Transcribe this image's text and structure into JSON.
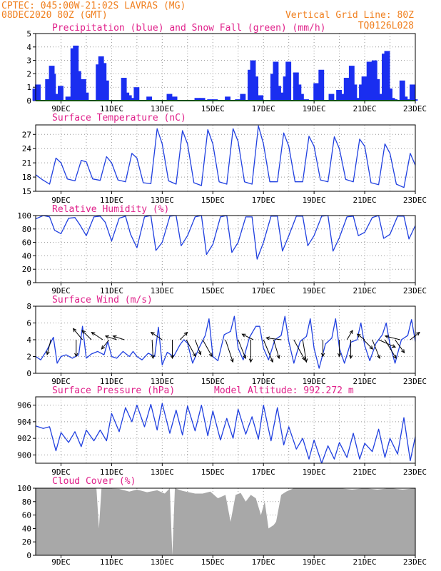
{
  "header": {
    "line1_left": "CPTEC:  045:00W-21:02S  LAVRAS (MG)",
    "line2_left": "08DEC2020 80Z (GMT)",
    "line2_right": "Vertical Grid Line: 80Z",
    "line3_right": "TQ0126L028"
  },
  "colors": {
    "header": "#f08020",
    "title": "#e0208a",
    "line": "#2040e0",
    "precip": "#1a2ef0",
    "snow": "#20a020",
    "cloud": "#a8a8a8",
    "grid": "#999999",
    "arrow": "#000000"
  },
  "x_axis": {
    "range_days": [
      8.0,
      23.0
    ],
    "tick_positions": [
      9,
      11,
      13,
      15,
      17,
      19,
      21,
      23
    ],
    "tick_labels": [
      "9DEC",
      "11DEC",
      "13DEC",
      "15DEC",
      "17DEC",
      "19DEC",
      "21DEC",
      "23DEC"
    ],
    "minor_grid_days": [
      8,
      9,
      10,
      11,
      12,
      13,
      14,
      15,
      16,
      17,
      18,
      19,
      20,
      21,
      22,
      23
    ]
  },
  "chart_data": [
    {
      "type": "bar",
      "panel": "precipitation",
      "title": "Precipitation (blue) and Snow Fall (green) (mm/h)",
      "ylim": [
        0,
        5
      ],
      "yticks": [
        0,
        1,
        2,
        3,
        4,
        5
      ],
      "series": [
        {
          "name": "Precipitation",
          "x": [
            8.0,
            8.1,
            8.5,
            8.6,
            8.65,
            8.7,
            8.8,
            9.0,
            9.3,
            9.5,
            9.6,
            9.7,
            9.8,
            9.9,
            10.0,
            10.5,
            10.6,
            10.7,
            10.8,
            11.5,
            11.6,
            11.7,
            11.8,
            12.0,
            12.5,
            12.6,
            13.3,
            13.5,
            14.4,
            14.6,
            14.9,
            15.1,
            15.6,
            16.0,
            16.2,
            16.5,
            16.6,
            16.7,
            16.9,
            17.4,
            17.5,
            17.6,
            17.8,
            17.9,
            18.0,
            18.3,
            18.4,
            18.5,
            18.7,
            19.1,
            19.3,
            19.7,
            20.0,
            20.1,
            20.3,
            20.5,
            20.6,
            20.8,
            20.9,
            21.0,
            21.2,
            21.4,
            21.5,
            21.6,
            21.8,
            21.9,
            22.0,
            22.1,
            22.2,
            22.5,
            22.6,
            22.7,
            22.9,
            23.0
          ],
          "values": [
            0.9,
            1.2,
            1.6,
            1.3,
            2.6,
            2.0,
            0.5,
            1.1,
            0.3,
            3.9,
            4.1,
            2.2,
            0.8,
            1.6,
            0.6,
            2.7,
            3.3,
            2.8,
            1.5,
            1.7,
            0.6,
            0.4,
            0.2,
            1.0,
            0.3,
            0.0,
            0.5,
            0.3,
            0.2,
            0.2,
            0.1,
            0.1,
            0.3,
            0.1,
            0.5,
            2.3,
            3.0,
            1.8,
            0.4,
            2.0,
            2.9,
            1.1,
            0.6,
            1.8,
            2.9,
            2.1,
            1.2,
            0.5,
            0.1,
            1.3,
            2.3,
            0.5,
            0.8,
            0.5,
            1.7,
            2.6,
            1.2,
            0.2,
            1.2,
            1.8,
            2.9,
            3.0,
            1.6,
            0.5,
            3.5,
            3.7,
            0.9,
            0.2,
            0.1,
            1.5,
            0.3,
            0.1,
            1.2,
            0.1
          ]
        },
        {
          "name": "Snow Fall",
          "x": [
            8.0,
            23.0
          ],
          "values": [
            0.0,
            0.0
          ]
        }
      ]
    },
    {
      "type": "line",
      "panel": "temperature",
      "title": "Surface Temperature (nC)",
      "ylim": [
        15,
        29
      ],
      "yticks": [
        15,
        18,
        21,
        24,
        27
      ],
      "series": [
        {
          "name": "Surface Temperature",
          "x": [
            8.0,
            8.25,
            8.55,
            8.8,
            9.0,
            9.25,
            9.55,
            9.8,
            10.0,
            10.25,
            10.55,
            10.8,
            11.0,
            11.25,
            11.55,
            11.8,
            12.0,
            12.25,
            12.55,
            12.8,
            13.0,
            13.25,
            13.55,
            13.8,
            14.0,
            14.25,
            14.55,
            14.8,
            15.0,
            15.25,
            15.55,
            15.8,
            16.0,
            16.25,
            16.55,
            16.8,
            17.0,
            17.25,
            17.55,
            17.8,
            18.0,
            18.25,
            18.55,
            18.8,
            19.0,
            19.25,
            19.55,
            19.8,
            20.0,
            20.25,
            20.55,
            20.8,
            21.0,
            21.25,
            21.55,
            21.8,
            22.0,
            22.25,
            22.55,
            22.8,
            23.0
          ],
          "values": [
            18.5,
            17.5,
            16.5,
            22.0,
            21.0,
            17.6,
            17.2,
            21.5,
            21.2,
            17.6,
            17.3,
            22.3,
            21.0,
            17.4,
            17.0,
            23.0,
            22.0,
            16.8,
            16.6,
            28.2,
            25.0,
            17.2,
            16.5,
            27.8,
            25.0,
            16.8,
            16.2,
            28.0,
            25.0,
            17.0,
            16.5,
            28.2,
            25.5,
            17.0,
            16.5,
            28.8,
            25.0,
            17.0,
            17.0,
            27.3,
            24.5,
            17.0,
            17.0,
            26.6,
            24.5,
            17.4,
            17.0,
            26.5,
            24.0,
            17.5,
            17.0,
            26.0,
            24.5,
            16.8,
            16.4,
            25.0,
            23.0,
            16.5,
            15.8,
            23.0,
            20.5
          ]
        }
      ]
    },
    {
      "type": "line",
      "panel": "humidity",
      "title": "Relative Humidity (%)",
      "ylim": [
        0,
        100
      ],
      "yticks": [
        0,
        20,
        40,
        60,
        80,
        100
      ],
      "series": [
        {
          "name": "Relative Humidity",
          "x": [
            8.0,
            8.3,
            8.55,
            8.75,
            9.0,
            9.3,
            9.55,
            9.75,
            10.0,
            10.3,
            10.55,
            10.75,
            11.0,
            11.3,
            11.55,
            11.75,
            12.0,
            12.3,
            12.55,
            12.75,
            13.0,
            13.3,
            13.55,
            13.75,
            14.0,
            14.3,
            14.55,
            14.75,
            15.0,
            15.3,
            15.55,
            15.75,
            16.0,
            16.3,
            16.55,
            16.75,
            17.0,
            17.3,
            17.55,
            17.75,
            18.0,
            18.3,
            18.55,
            18.75,
            19.0,
            19.3,
            19.55,
            19.75,
            20.0,
            20.3,
            20.55,
            20.75,
            21.0,
            21.3,
            21.55,
            21.75,
            22.0,
            22.3,
            22.55,
            22.75,
            23.0
          ],
          "values": [
            95,
            100,
            98,
            78,
            73,
            96,
            97,
            86,
            70,
            98,
            99,
            90,
            62,
            96,
            99,
            72,
            52,
            98,
            100,
            48,
            60,
            99,
            100,
            55,
            70,
            98,
            100,
            42,
            57,
            98,
            100,
            45,
            60,
            98,
            98,
            35,
            60,
            99,
            99,
            47,
            70,
            99,
            99,
            55,
            70,
            99,
            100,
            47,
            67,
            98,
            99,
            70,
            75,
            97,
            100,
            66,
            72,
            99,
            99,
            65,
            85
          ]
        }
      ]
    },
    {
      "type": "line",
      "panel": "wind",
      "title": "Surface Wind (m/s)",
      "ylim": [
        0,
        8
      ],
      "yticks": [
        0,
        2,
        4,
        6,
        8
      ],
      "series": [
        {
          "name": "Surface Wind",
          "x": [
            8.0,
            8.2,
            8.45,
            8.7,
            8.85,
            9.0,
            9.2,
            9.45,
            9.7,
            9.85,
            10.0,
            10.2,
            10.45,
            10.7,
            10.85,
            11.0,
            11.2,
            11.45,
            11.7,
            11.85,
            12.0,
            12.2,
            12.45,
            12.7,
            12.85,
            13.0,
            13.2,
            13.45,
            13.7,
            13.85,
            14.0,
            14.2,
            14.45,
            14.7,
            14.85,
            15.0,
            15.2,
            15.45,
            15.7,
            15.85,
            16.0,
            16.2,
            16.45,
            16.7,
            16.85,
            17.0,
            17.2,
            17.45,
            17.7,
            17.85,
            18.0,
            18.2,
            18.45,
            18.7,
            18.85,
            19.0,
            19.2,
            19.45,
            19.7,
            19.85,
            20.0,
            20.2,
            20.45,
            20.7,
            20.85,
            21.0,
            21.2,
            21.45,
            21.7,
            21.85,
            22.0,
            22.2,
            22.45,
            22.7,
            22.85,
            23.0
          ],
          "values": [
            2.0,
            1.6,
            2.8,
            4.3,
            1.2,
            2.0,
            2.2,
            1.8,
            2.2,
            5.6,
            1.8,
            2.3,
            2.6,
            2.2,
            3.8,
            2.0,
            1.8,
            2.6,
            2.0,
            2.6,
            2.0,
            1.6,
            2.4,
            2.0,
            5.5,
            1.0,
            2.5,
            2.0,
            3.4,
            4.0,
            3.6,
            1.2,
            3.0,
            4.5,
            6.5,
            2.0,
            1.5,
            4.6,
            5.0,
            6.8,
            3.0,
            1.6,
            4.3,
            5.6,
            5.6,
            3.0,
            1.6,
            4.0,
            4.5,
            6.8,
            3.8,
            1.2,
            3.8,
            4.4,
            6.5,
            3.0,
            0.6,
            3.5,
            4.2,
            6.5,
            3.0,
            1.2,
            3.7,
            4.0,
            6.0,
            3.3,
            1.5,
            3.6,
            4.6,
            6.0,
            3.4,
            1.2,
            4.0,
            4.5,
            6.4,
            3.8
          ]
        }
      ],
      "wind_vectors": [
        {
          "x": 8.6,
          "u": -0.2,
          "v": -0.8
        },
        {
          "x": 9.6,
          "u": 0.0,
          "v": -0.9
        },
        {
          "x": 9.85,
          "u": -0.5,
          "v": 0.6
        },
        {
          "x": 10.2,
          "u": -0.5,
          "v": 0.5
        },
        {
          "x": 10.65,
          "u": -0.6,
          "v": 0.4
        },
        {
          "x": 10.9,
          "u": -0.4,
          "v": -0.5
        },
        {
          "x": 11.2,
          "u": -0.6,
          "v": 0.2
        },
        {
          "x": 11.5,
          "u": -0.6,
          "v": 0.2
        },
        {
          "x": 12.6,
          "u": 0.05,
          "v": -1.0
        },
        {
          "x": 13.0,
          "u": -0.6,
          "v": 0.4
        },
        {
          "x": 13.4,
          "u": 0.0,
          "v": -1.0
        },
        {
          "x": 13.7,
          "u": 0.4,
          "v": 0.4
        },
        {
          "x": 13.95,
          "u": 0.5,
          "v": -0.9
        },
        {
          "x": 14.3,
          "u": 0.3,
          "v": -0.8
        },
        {
          "x": 14.6,
          "u": 0.5,
          "v": -0.9
        },
        {
          "x": 15.5,
          "u": 0.4,
          "v": -1.2
        },
        {
          "x": 16.0,
          "u": 0.4,
          "v": -1.0
        },
        {
          "x": 16.5,
          "u": 0.0,
          "v": -1.2
        },
        {
          "x": 16.6,
          "u": -0.6,
          "v": 0.3
        },
        {
          "x": 17.0,
          "u": 0.5,
          "v": -1.2
        },
        {
          "x": 17.4,
          "u": 0.3,
          "v": -1.0
        },
        {
          "x": 17.7,
          "u": -0.8,
          "v": 0.1
        },
        {
          "x": 18.2,
          "u": 0.6,
          "v": -1.1
        },
        {
          "x": 18.55,
          "u": 0.2,
          "v": -1.2
        },
        {
          "x": 19.35,
          "u": 0.0,
          "v": -0.9
        },
        {
          "x": 20.0,
          "u": 0.0,
          "v": -0.9
        },
        {
          "x": 20.3,
          "u": 0.3,
          "v": 0.5
        },
        {
          "x": 20.45,
          "u": 0.0,
          "v": -1.0
        },
        {
          "x": 20.95,
          "u": 0.5,
          "v": -0.5
        },
        {
          "x": 21.0,
          "u": -0.4,
          "v": 0.3
        },
        {
          "x": 21.3,
          "u": 0.4,
          "v": -1.0
        },
        {
          "x": 21.55,
          "u": 0.9,
          "v": -0.4
        },
        {
          "x": 21.8,
          "u": 0.6,
          "v": -1.0
        },
        {
          "x": 22.2,
          "u": 0.5,
          "v": -0.7
        },
        {
          "x": 22.4,
          "u": -0.8,
          "v": 0.2
        },
        {
          "x": 22.8,
          "u": 0.5,
          "v": 0.4
        }
      ]
    },
    {
      "type": "line",
      "panel": "pressure",
      "title": "Surface Pressure (hPa)",
      "subtitle": "Model Altitude: 992.272 m",
      "ylim": [
        899,
        907
      ],
      "yticks": [
        900,
        902,
        904,
        906
      ],
      "series": [
        {
          "name": "Surface Pressure",
          "x": [
            8.0,
            8.3,
            8.55,
            8.8,
            9.0,
            9.3,
            9.55,
            9.8,
            10.0,
            10.3,
            10.55,
            10.8,
            11.0,
            11.3,
            11.55,
            11.8,
            12.0,
            12.3,
            12.55,
            12.8,
            13.0,
            13.3,
            13.55,
            13.8,
            14.0,
            14.3,
            14.55,
            14.8,
            15.0,
            15.3,
            15.55,
            15.8,
            16.0,
            16.3,
            16.55,
            16.8,
            17.0,
            17.3,
            17.55,
            17.8,
            18.0,
            18.3,
            18.55,
            18.8,
            19.0,
            19.3,
            19.55,
            19.8,
            20.0,
            20.3,
            20.55,
            20.8,
            21.0,
            21.3,
            21.55,
            21.8,
            22.0,
            22.3,
            22.55,
            22.8,
            23.0
          ],
          "values": [
            903.5,
            903.2,
            903.4,
            900.5,
            902.7,
            901.5,
            902.8,
            901.0,
            903.0,
            901.7,
            903.0,
            901.7,
            905.0,
            902.8,
            905.7,
            904.0,
            906.0,
            903.4,
            906.1,
            903.0,
            906.2,
            902.6,
            905.4,
            902.4,
            905.9,
            902.9,
            906.0,
            902.3,
            905.3,
            901.8,
            904.4,
            902.0,
            905.5,
            902.5,
            904.6,
            901.9,
            906.0,
            901.7,
            905.7,
            901.2,
            903.4,
            900.7,
            902.0,
            899.5,
            901.8,
            899.0,
            901.1,
            899.5,
            901.5,
            899.7,
            902.6,
            899.5,
            901.4,
            900.4,
            903.1,
            899.7,
            902.0,
            900.1,
            904.5,
            899.3,
            902.2
          ]
        }
      ]
    },
    {
      "type": "area",
      "panel": "cloud",
      "title": "Cloud Cover (%)",
      "ylim": [
        0,
        100
      ],
      "yticks": [
        0,
        20,
        40,
        60,
        80,
        100
      ],
      "series": [
        {
          "name": "Cloud Cover",
          "x": [
            8.0,
            10.4,
            10.5,
            10.6,
            11.3,
            11.7,
            12.0,
            12.4,
            12.8,
            13.1,
            13.3,
            13.4,
            13.5,
            13.8,
            14.3,
            14.6,
            14.9,
            15.2,
            15.5,
            15.7,
            15.9,
            16.1,
            16.3,
            16.5,
            16.7,
            16.9,
            17.05,
            17.2,
            17.4,
            17.5,
            17.7,
            17.9,
            18.2,
            18.5,
            19.0,
            19.5,
            20.0,
            20.5,
            21.0,
            21.5,
            22.0,
            22.5,
            23.0
          ],
          "values": [
            100,
            100,
            40,
            100,
            99,
            95,
            98,
            94,
            97,
            92,
            100,
            0,
            100,
            96,
            92,
            92,
            95,
            85,
            90,
            50,
            90,
            93,
            80,
            90,
            85,
            60,
            80,
            40,
            45,
            50,
            90,
            95,
            100,
            100,
            100,
            100,
            100,
            98,
            100,
            98,
            100,
            98,
            100
          ]
        }
      ]
    }
  ]
}
